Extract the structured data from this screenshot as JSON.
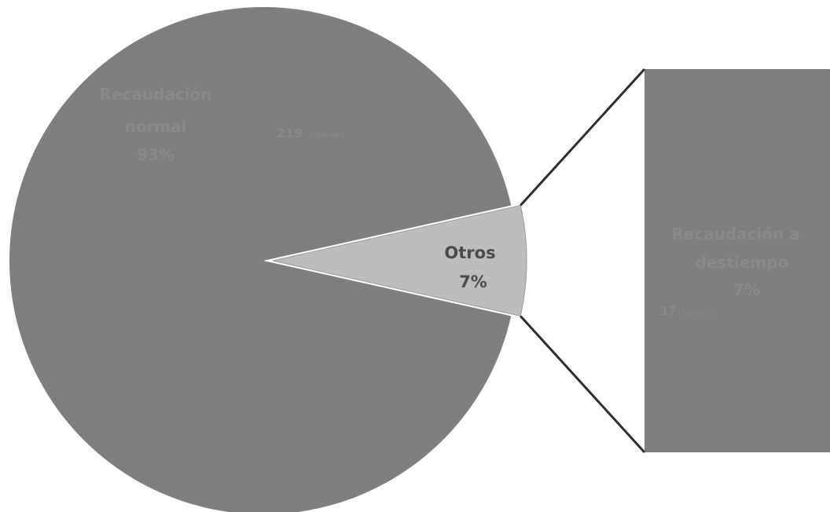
{
  "chart_data": {
    "type": "pie",
    "subtype": "pie-of-bar",
    "slices": [
      {
        "label": "Recaudación normal",
        "percent_label": "93%",
        "value": 93,
        "count": "219",
        "count_unit": "Usuarios",
        "color": "#828282"
      },
      {
        "label": "Otros",
        "percent_label": "7%",
        "value": 7,
        "color": "#bdbdbd"
      }
    ],
    "breakout": {
      "of": "Otros",
      "bars": [
        {
          "label": "Recaudación a destiempo",
          "percent_label": "7%",
          "value": 7,
          "count": "17",
          "count_unit": "Usuarios",
          "color": "#828282"
        }
      ]
    },
    "title": "",
    "legend": "none"
  }
}
